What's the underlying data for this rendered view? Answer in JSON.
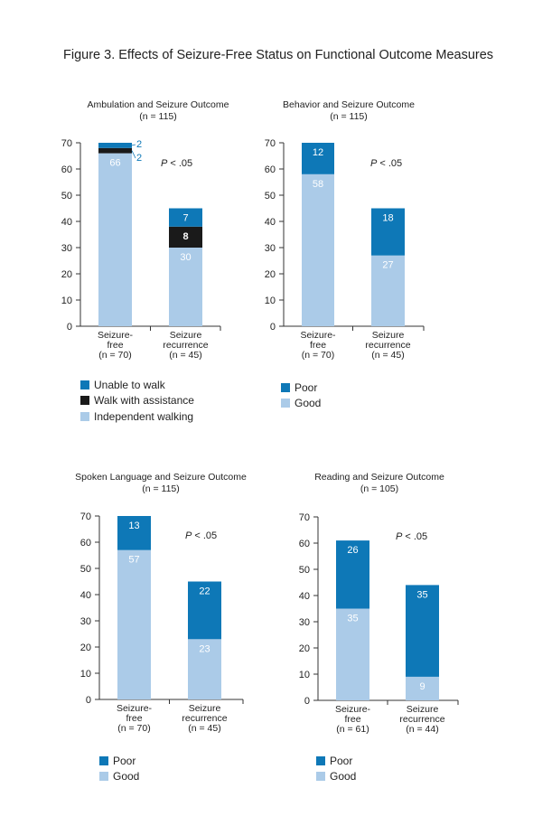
{
  "figure_title": "Figure 3. Effects of Seizure-Free Status on Functional Outcome Measures",
  "colors": {
    "poor": "#0e78b7",
    "good": "#abcbe8",
    "assist": "#1a1a1a",
    "axis": "#333333"
  },
  "chart_data": [
    {
      "type": "bar",
      "title": "Ambulation and Seizure Outcome",
      "subtitle": "(n = 115)",
      "ylim": [
        0,
        70
      ],
      "yticks": [
        0,
        10,
        20,
        30,
        40,
        50,
        60,
        70
      ],
      "annotation": "P < .05",
      "categories": [
        [
          "Seizure-",
          "free",
          "(n = 70)"
        ],
        [
          "Seizure",
          "recurrence",
          "(n = 45)"
        ]
      ],
      "series": [
        {
          "name": "Independent walking",
          "color": "#abcbe8",
          "values": [
            66,
            30
          ]
        },
        {
          "name": "Walk with assistance",
          "color": "#1a1a1a",
          "values": [
            2,
            8
          ]
        },
        {
          "name": "Unable to walk",
          "color": "#0e78b7",
          "values": [
            2,
            7
          ]
        }
      ],
      "data_labels": [
        [
          "66",
          "2",
          "2"
        ],
        [
          "30",
          "8",
          "7"
        ]
      ],
      "legend": [
        "Unable to walk",
        "Walk with assistance",
        "Independent walking"
      ],
      "legend_colors": [
        "#0e78b7",
        "#1a1a1a",
        "#abcbe8"
      ]
    },
    {
      "type": "bar",
      "title": "Behavior and Seizure Outcome",
      "subtitle": "(n = 115)",
      "ylim": [
        0,
        70
      ],
      "yticks": [
        0,
        10,
        20,
        30,
        40,
        50,
        60,
        70
      ],
      "annotation": "P < .05",
      "categories": [
        [
          "Seizure-",
          "free",
          "(n = 70)"
        ],
        [
          "Seizure",
          "recurrence",
          "(n = 45)"
        ]
      ],
      "series": [
        {
          "name": "Good",
          "color": "#abcbe8",
          "values": [
            58,
            27
          ]
        },
        {
          "name": "Poor",
          "color": "#0e78b7",
          "values": [
            12,
            18
          ]
        }
      ],
      "data_labels": [
        [
          "58",
          "12"
        ],
        [
          "27",
          "18"
        ]
      ],
      "legend": [
        "Poor",
        "Good"
      ],
      "legend_colors": [
        "#0e78b7",
        "#abcbe8"
      ]
    },
    {
      "type": "bar",
      "title": "Spoken Language and Seizure Outcome",
      "subtitle": "(n = 115)",
      "ylim": [
        0,
        70
      ],
      "yticks": [
        0,
        10,
        20,
        30,
        40,
        50,
        60,
        70
      ],
      "annotation": "P < .05",
      "categories": [
        [
          "Seizure-",
          "free",
          "(n = 70)"
        ],
        [
          "Seizure",
          "recurrence",
          "(n = 45)"
        ]
      ],
      "series": [
        {
          "name": "Good",
          "color": "#abcbe8",
          "values": [
            57,
            23
          ]
        },
        {
          "name": "Poor",
          "color": "#0e78b7",
          "values": [
            13,
            22
          ]
        }
      ],
      "data_labels": [
        [
          "57",
          "13"
        ],
        [
          "23",
          "22"
        ]
      ],
      "legend": [
        "Poor",
        "Good"
      ],
      "legend_colors": [
        "#0e78b7",
        "#abcbe8"
      ]
    },
    {
      "type": "bar",
      "title": "Reading and Seizure Outcome",
      "subtitle": "(n = 105)",
      "ylim": [
        0,
        70
      ],
      "yticks": [
        0,
        10,
        20,
        30,
        40,
        50,
        60,
        70
      ],
      "annotation": "P < .05",
      "categories": [
        [
          "Seizure-",
          "free",
          "(n = 61)"
        ],
        [
          "Seizure",
          "recurrence",
          "(n = 44)"
        ]
      ],
      "series": [
        {
          "name": "Good",
          "color": "#abcbe8",
          "values": [
            35,
            9
          ]
        },
        {
          "name": "Poor",
          "color": "#0e78b7",
          "values": [
            26,
            35
          ]
        }
      ],
      "data_labels": [
        [
          "35",
          "26"
        ],
        [
          "9",
          "35"
        ]
      ],
      "legend": [
        "Poor",
        "Good"
      ],
      "legend_colors": [
        "#0e78b7",
        "#abcbe8"
      ]
    }
  ]
}
